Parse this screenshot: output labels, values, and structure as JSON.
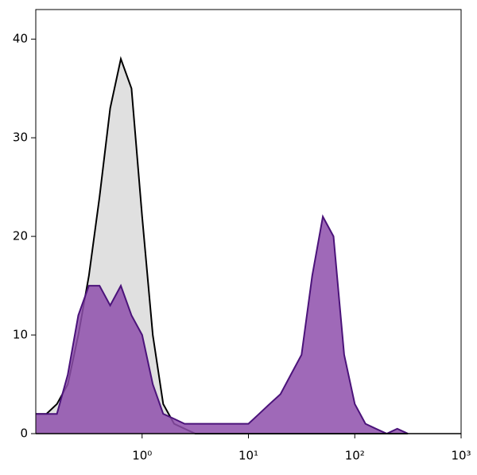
{
  "chart_data": {
    "type": "histogram-overlay",
    "xscale": "log",
    "x": [
      0.1,
      0.126,
      0.158,
      0.2,
      0.251,
      0.316,
      0.398,
      0.501,
      0.631,
      0.794,
      1,
      1.26,
      1.58,
      2,
      2.51,
      3.16,
      3.98,
      5.01,
      6.31,
      7.94,
      10,
      12.6,
      15.8,
      20,
      25.1,
      31.6,
      39.8,
      50.1,
      63.1,
      79.4,
      100,
      126,
      158,
      200,
      251,
      316
    ],
    "series": [
      {
        "fill": "#e0e0e0",
        "color": "#000000",
        "values": [
          2,
          2,
          3,
          5,
          10,
          16,
          24,
          33,
          38,
          35,
          22,
          10,
          3,
          1,
          0.5,
          0,
          0,
          0,
          0,
          0,
          0,
          0,
          0,
          0,
          0,
          0,
          0,
          0,
          0,
          0,
          0,
          0,
          0,
          0,
          0,
          0
        ]
      },
      {
        "fill": "#8e4fab",
        "color": "#4b137a",
        "values": [
          2,
          2,
          2,
          6,
          12,
          15,
          15,
          13,
          15,
          12,
          10,
          5,
          2,
          1.5,
          1,
          1,
          1,
          1,
          1,
          1,
          1,
          2,
          3,
          4,
          6,
          8,
          16,
          22,
          20,
          8,
          3,
          1,
          0.5,
          0,
          0.5,
          0
        ]
      }
    ],
    "xlim": [
      0.1,
      1000
    ],
    "ylim": [
      0,
      43
    ],
    "xticks": [
      {
        "value": 1,
        "label": "10⁰"
      },
      {
        "value": 10,
        "label": "10¹"
      },
      {
        "value": 100,
        "label": "10²"
      },
      {
        "value": 1000,
        "label": "10³"
      }
    ],
    "yticks": [
      0,
      10,
      20,
      30,
      40
    ]
  }
}
